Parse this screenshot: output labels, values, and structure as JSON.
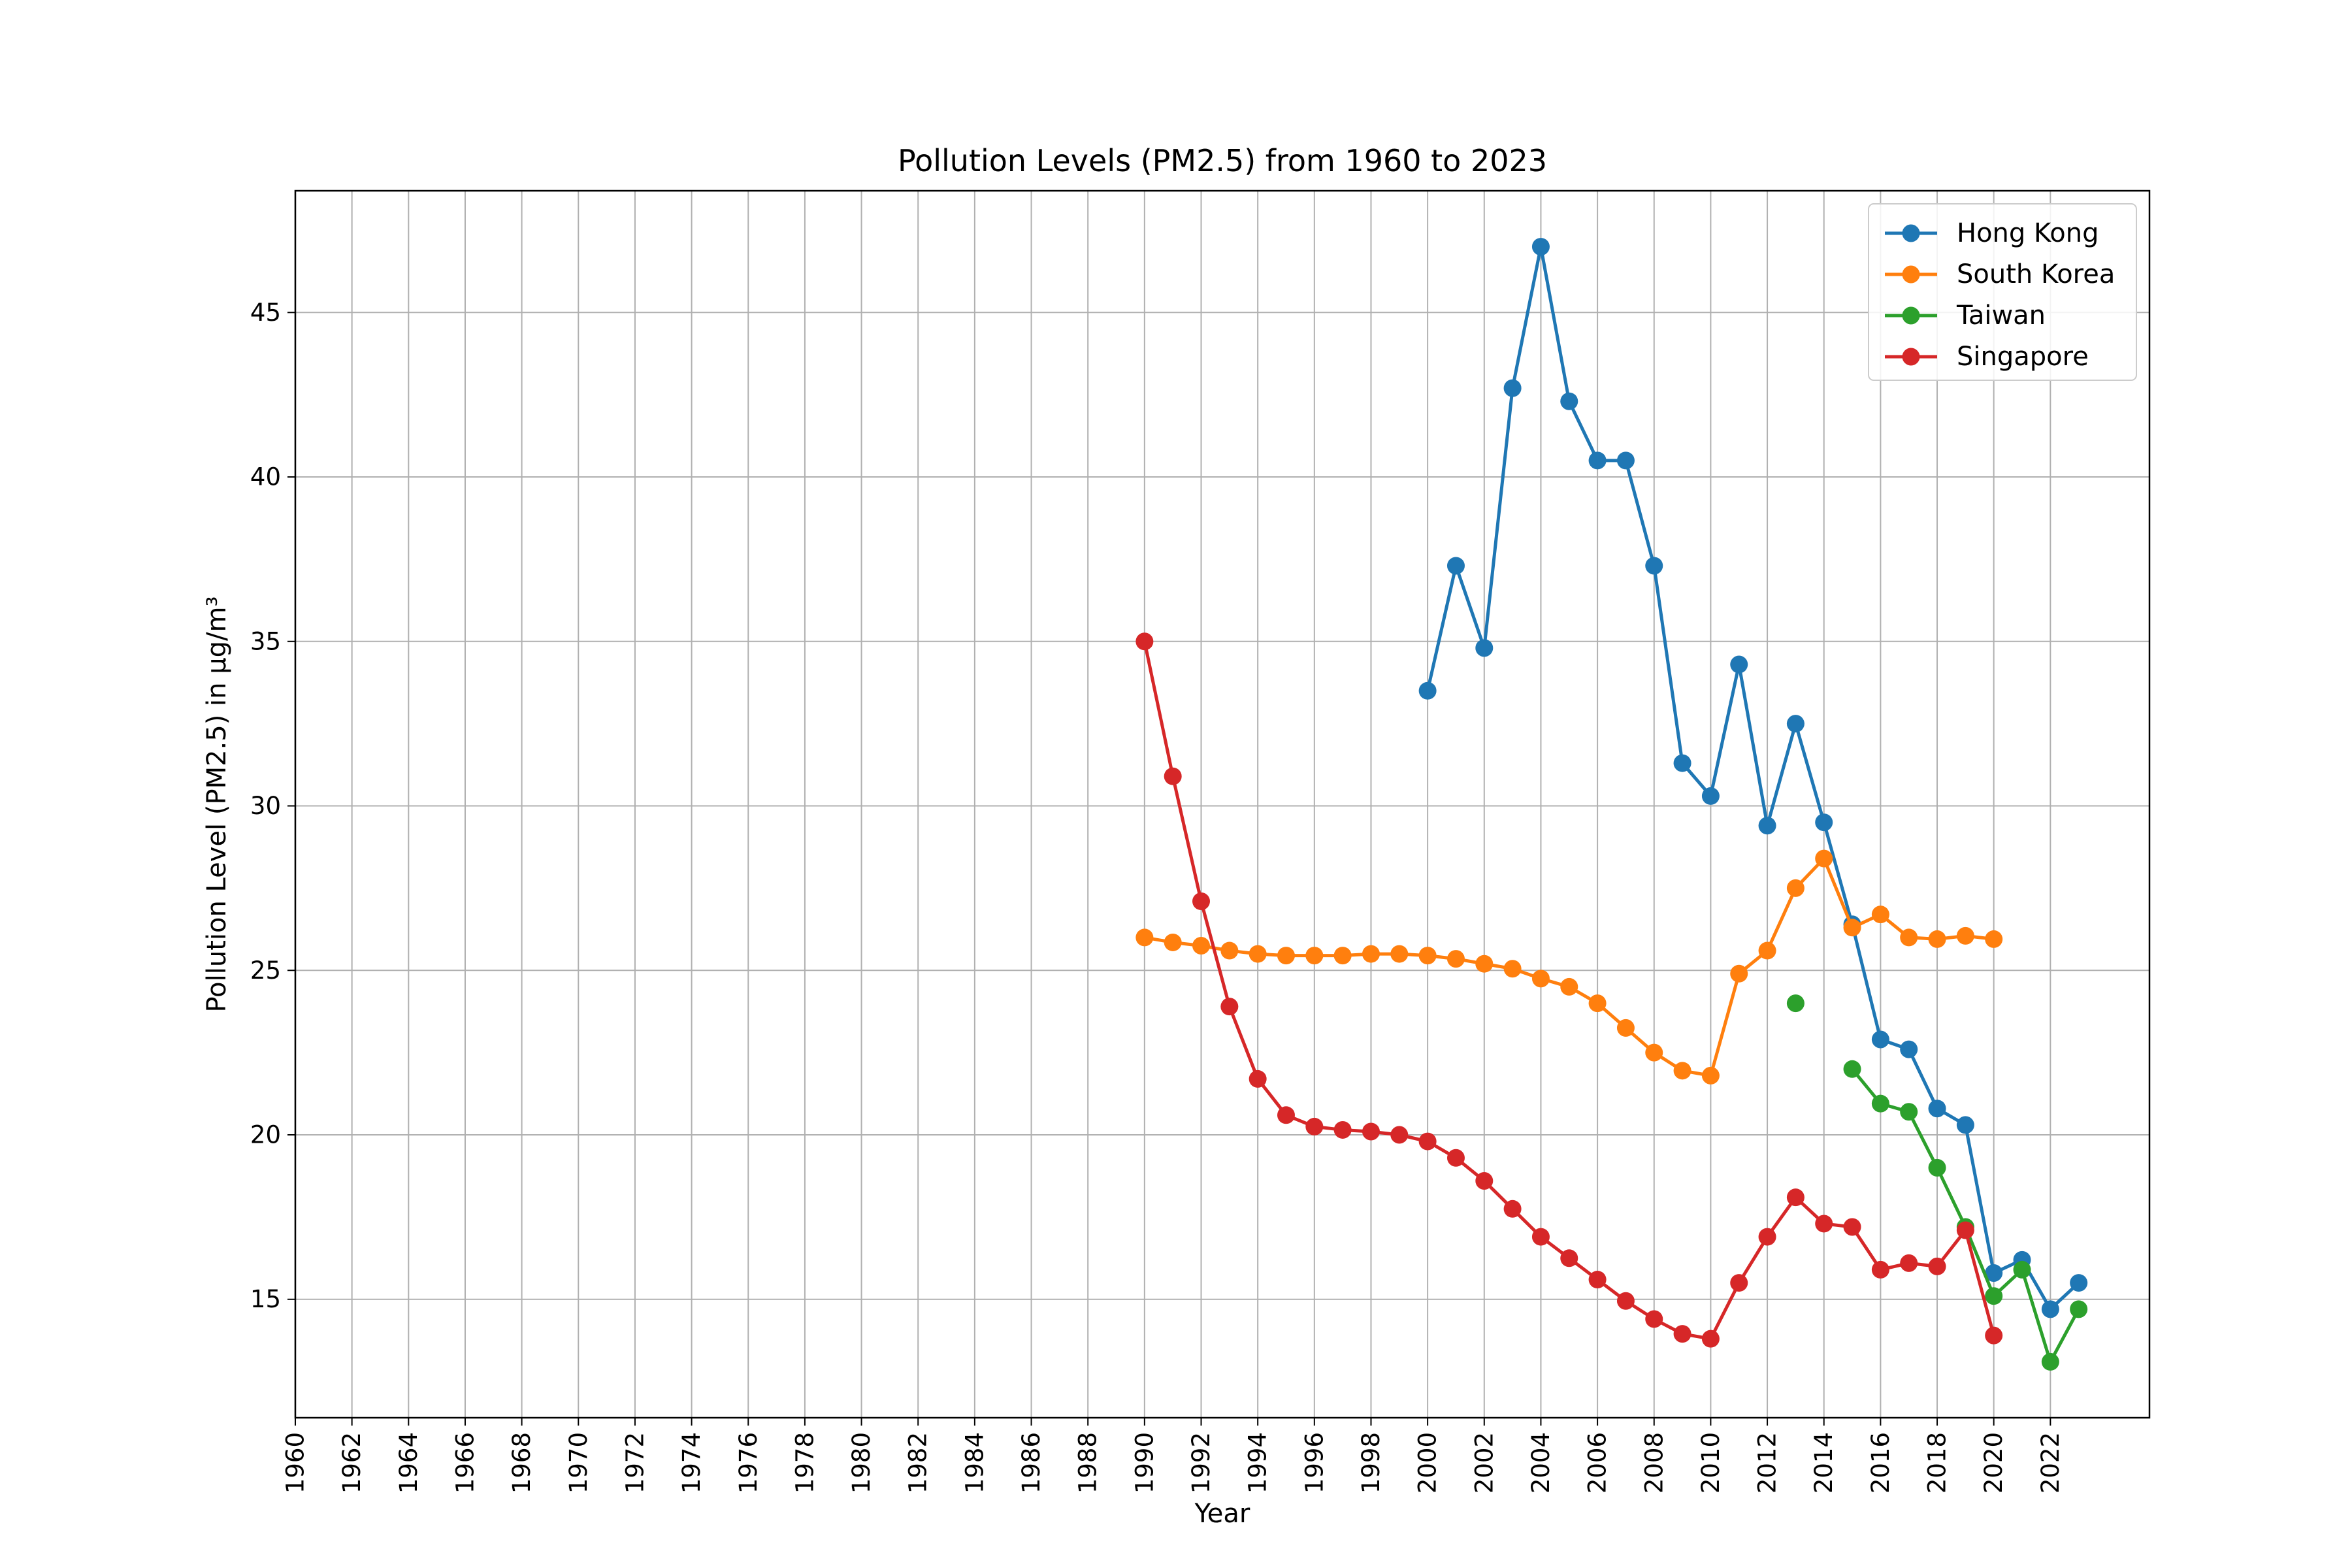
{
  "chart_data": {
    "type": "line",
    "title": "Pollution Levels (PM2.5) from 1960 to 2023",
    "xlabel": "Year",
    "ylabel": "Pollution Level (PM2.5) in µg/m³",
    "xlim": [
      1960,
      2025.5
    ],
    "ylim": [
      11.4,
      48.7
    ],
    "x_ticks": [
      1960,
      1962,
      1964,
      1966,
      1968,
      1970,
      1972,
      1974,
      1976,
      1978,
      1980,
      1982,
      1984,
      1986,
      1988,
      1990,
      1992,
      1994,
      1996,
      1998,
      2000,
      2002,
      2004,
      2006,
      2008,
      2010,
      2012,
      2014,
      2016,
      2018,
      2020,
      2022
    ],
    "y_ticks": [
      15,
      20,
      25,
      30,
      35,
      40,
      45
    ],
    "grid": true,
    "legend_position": "top-right",
    "series": [
      {
        "name": "Hong Kong",
        "color": "#1f77b4",
        "points": [
          [
            2000,
            33.5
          ],
          [
            2001,
            37.3
          ],
          [
            2002,
            34.8
          ],
          [
            2003,
            42.7
          ],
          [
            2004,
            47.0
          ],
          [
            2005,
            42.3
          ],
          [
            2006,
            40.5
          ],
          [
            2007,
            40.5
          ],
          [
            2008,
            37.3
          ],
          [
            2009,
            31.3
          ],
          [
            2010,
            30.3
          ],
          [
            2011,
            34.3
          ],
          [
            2012,
            29.4
          ],
          [
            2013,
            32.5
          ],
          [
            2014,
            29.5
          ],
          [
            2015,
            26.4
          ],
          [
            2016,
            22.9
          ],
          [
            2017,
            22.6
          ],
          [
            2018,
            20.8
          ],
          [
            2019,
            20.3
          ],
          [
            2020,
            15.8
          ],
          [
            2021,
            16.2
          ],
          [
            2022,
            14.7
          ],
          [
            2023,
            15.5
          ]
        ]
      },
      {
        "name": "South Korea",
        "color": "#ff7f0e",
        "points": [
          [
            1990,
            26.0
          ],
          [
            1991,
            25.85
          ],
          [
            1992,
            25.75
          ],
          [
            1993,
            25.6
          ],
          [
            1994,
            25.5
          ],
          [
            1995,
            25.45
          ],
          [
            1996,
            25.45
          ],
          [
            1997,
            25.45
          ],
          [
            1998,
            25.5
          ],
          [
            1999,
            25.5
          ],
          [
            2000,
            25.45
          ],
          [
            2001,
            25.35
          ],
          [
            2002,
            25.2
          ],
          [
            2003,
            25.05
          ],
          [
            2004,
            24.75
          ],
          [
            2005,
            24.5
          ],
          [
            2006,
            24.0
          ],
          [
            2007,
            23.25
          ],
          [
            2008,
            22.5
          ],
          [
            2009,
            21.95
          ],
          [
            2010,
            21.8
          ],
          [
            2011,
            24.9
          ],
          [
            2012,
            25.6
          ],
          [
            2013,
            27.5
          ],
          [
            2014,
            28.4
          ],
          [
            2015,
            26.3
          ],
          [
            2016,
            26.7
          ],
          [
            2017,
            26.0
          ],
          [
            2018,
            25.95
          ],
          [
            2019,
            26.05
          ],
          [
            2020,
            25.95
          ]
        ]
      },
      {
        "name": "Taiwan",
        "color": "#2ca02c",
        "points": [
          [
            2013,
            24.0
          ],
          [
            2014,
            null
          ],
          [
            2015,
            22.0
          ],
          [
            2016,
            20.95
          ],
          [
            2017,
            20.7
          ],
          [
            2018,
            19.0
          ],
          [
            2019,
            17.2
          ],
          [
            2020,
            15.1
          ],
          [
            2021,
            15.9
          ],
          [
            2022,
            13.1
          ],
          [
            2023,
            14.7
          ]
        ]
      },
      {
        "name": "Singapore",
        "color": "#d62728",
        "points": [
          [
            1990,
            35.0
          ],
          [
            1991,
            30.9
          ],
          [
            1992,
            27.1
          ],
          [
            1993,
            23.9
          ],
          [
            1994,
            21.7
          ],
          [
            1995,
            20.6
          ],
          [
            1996,
            20.25
          ],
          [
            1997,
            20.15
          ],
          [
            1998,
            20.1
          ],
          [
            1999,
            20.0
          ],
          [
            2000,
            19.8
          ],
          [
            2001,
            19.3
          ],
          [
            2002,
            18.6
          ],
          [
            2003,
            17.75
          ],
          [
            2004,
            16.9
          ],
          [
            2005,
            16.25
          ],
          [
            2006,
            15.6
          ],
          [
            2007,
            14.95
          ],
          [
            2008,
            14.4
          ],
          [
            2009,
            13.95
          ],
          [
            2010,
            13.8
          ],
          [
            2011,
            15.5
          ],
          [
            2012,
            16.9
          ],
          [
            2013,
            18.1
          ],
          [
            2014,
            17.3
          ],
          [
            2015,
            17.2
          ],
          [
            2016,
            15.9
          ],
          [
            2017,
            16.1
          ],
          [
            2018,
            16.0
          ],
          [
            2019,
            17.1
          ],
          [
            2020,
            13.9
          ]
        ]
      }
    ]
  }
}
